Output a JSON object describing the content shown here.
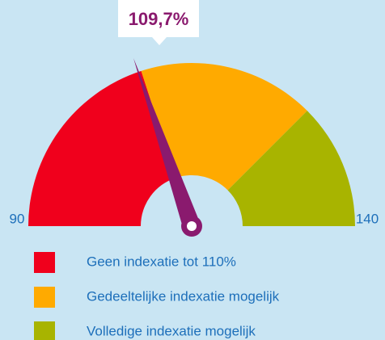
{
  "chart_data": {
    "type": "gauge",
    "value": 109.7,
    "value_labels": [
      "109,7%"
    ],
    "ylim": [
      90,
      140
    ],
    "yticks": [
      90,
      140
    ],
    "needle_color": "#8a1a6e",
    "series": [
      {
        "name": "Geen indexatie tot 110%",
        "color": "#f0001c",
        "from": 90,
        "to": 110
      },
      {
        "name": "Gedeeltelijke indexatie mogelijk",
        "color": "#ffaa00",
        "from": 110,
        "to": 127.5
      },
      {
        "name": "Volledige indexatie mogelijk",
        "color": "#a8b400",
        "from": 127.5,
        "to": 140
      }
    ]
  }
}
